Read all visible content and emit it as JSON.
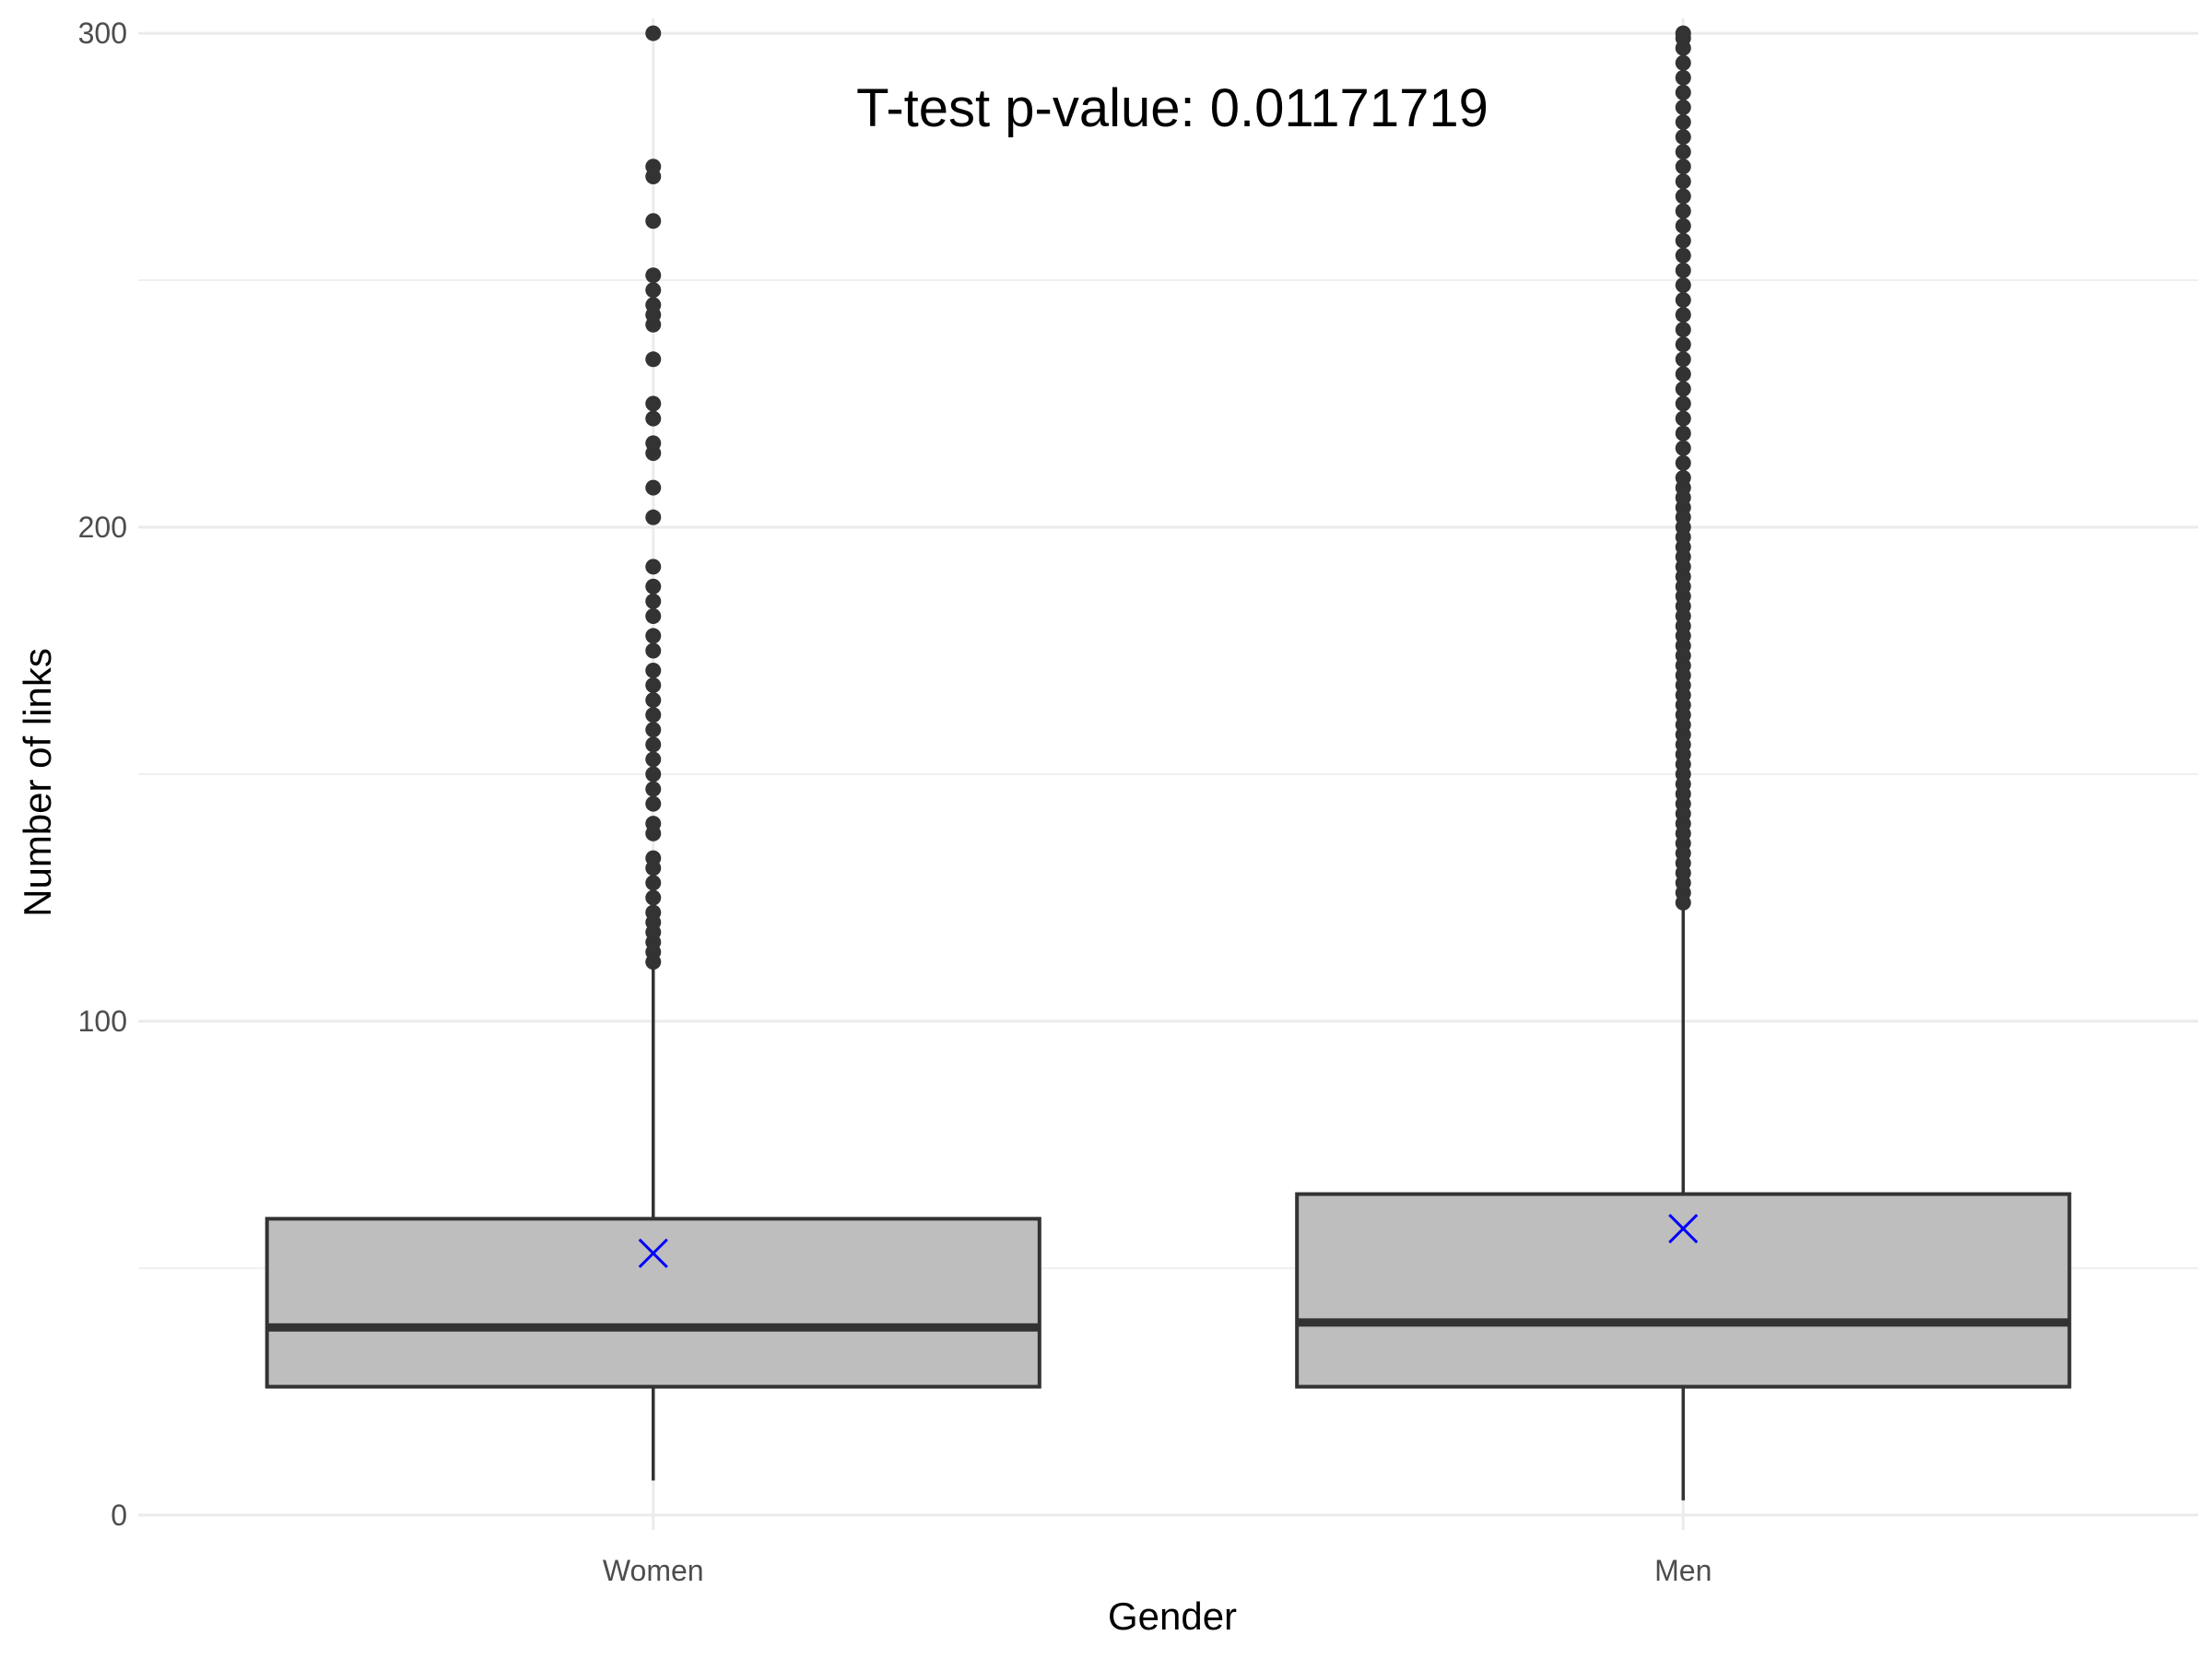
{
  "chart_data": {
    "type": "box",
    "annotation": "T-test p-value: 0.01171719",
    "xlabel": "Gender",
    "ylabel": "Number of links",
    "ylim": [
      -3,
      303
    ],
    "yticks": [
      0,
      100,
      200,
      300
    ],
    "grid": true,
    "colors": {
      "box_fill": "#bebebe",
      "box_line": "#333333",
      "mean_marker": "#0000ff"
    },
    "categories": [
      "Women",
      "Men"
    ],
    "boxes": [
      {
        "category": "Women",
        "whisker_low": 7,
        "q1": 26,
        "median": 38,
        "q3": 60,
        "whisker_high": 111,
        "mean": 53,
        "outliers": [
          112,
          114,
          116,
          118,
          120,
          122,
          125,
          128,
          131,
          133,
          138,
          140,
          144,
          147,
          150,
          153,
          156,
          159,
          162,
          165,
          168,
          171,
          175,
          178,
          182,
          185,
          188,
          192,
          202,
          208,
          215,
          217,
          222,
          225,
          234,
          241,
          243,
          245,
          248,
          251,
          262,
          271,
          273,
          300
        ]
      },
      {
        "category": "Men",
        "whisker_low": 3,
        "q1": 26,
        "median": 39,
        "q3": 65,
        "whisker_high": 123,
        "mean": 58,
        "outliers": [
          124,
          126,
          128,
          130,
          132,
          134,
          136,
          138,
          140,
          142,
          144,
          146,
          148,
          150,
          152,
          154,
          156,
          158,
          160,
          162,
          164,
          166,
          168,
          170,
          172,
          174,
          176,
          178,
          180,
          182,
          184,
          186,
          188,
          190,
          192,
          194,
          196,
          198,
          200,
          202,
          204,
          206,
          208,
          210,
          213,
          216,
          219,
          222,
          225,
          228,
          231,
          234,
          237,
          240,
          243,
          246,
          249,
          252,
          255,
          258,
          261,
          264,
          267,
          270,
          273,
          276,
          279,
          282,
          285,
          288,
          291,
          294,
          297,
          299,
          300
        ]
      }
    ]
  }
}
